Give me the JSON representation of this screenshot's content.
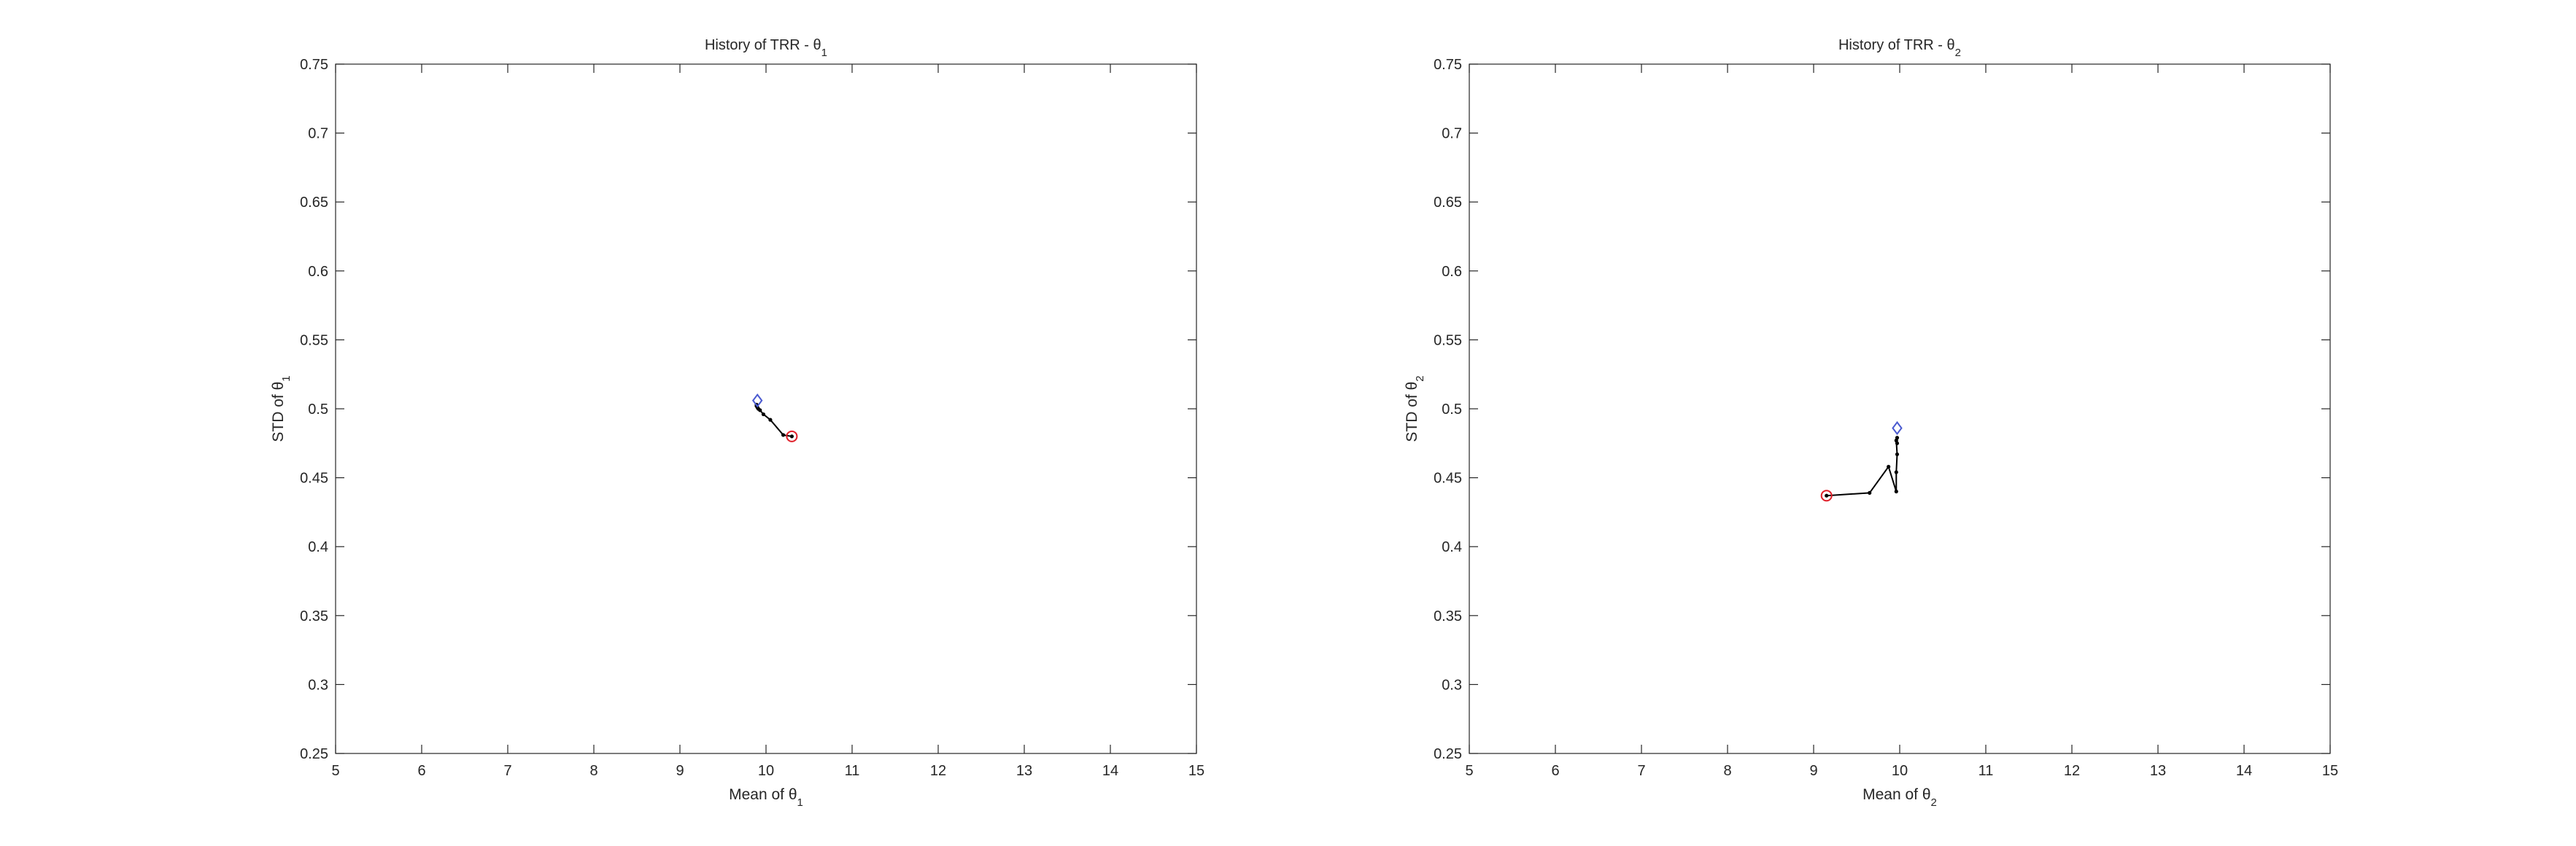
{
  "chart_data": [
    {
      "type": "line",
      "title": "History of TRR - θ",
      "title_subscript": "1",
      "xlabel": "Mean of θ",
      "xlabel_subscript": "1",
      "ylabel": "STD of θ",
      "ylabel_subscript": "1",
      "xlim": [
        5,
        15
      ],
      "ylim": [
        0.25,
        0.75
      ],
      "xticks": [
        5,
        6,
        7,
        8,
        9,
        10,
        11,
        12,
        13,
        14,
        15
      ],
      "yticks": [
        0.25,
        0.3,
        0.35,
        0.4,
        0.45,
        0.5,
        0.55,
        0.6,
        0.65,
        0.7,
        0.75
      ],
      "xtick_labels": [
        "5",
        "6",
        "7",
        "8",
        "9",
        "10",
        "11",
        "12",
        "13",
        "14",
        "15"
      ],
      "ytick_labels": [
        "0.25",
        "0.3",
        "0.35",
        "0.4",
        "0.45",
        "0.5",
        "0.55",
        "0.6",
        "0.65",
        "0.7",
        "0.75"
      ],
      "grid": false,
      "series": [
        {
          "name": "history",
          "color": "#000000",
          "x": [
            10.3,
            10.2,
            10.05,
            9.97,
            9.93,
            9.91,
            9.9,
            9.89,
            9.89
          ],
          "y": [
            0.48,
            0.481,
            0.492,
            0.496,
            0.499,
            0.5,
            0.501,
            0.502,
            0.503
          ]
        }
      ],
      "start_marker": {
        "shape": "circle",
        "color": "#e0202a",
        "x": 10.3,
        "y": 0.48
      },
      "end_marker": {
        "shape": "diamond",
        "color": "#4a5ad0",
        "x": 9.9,
        "y": 0.506
      }
    },
    {
      "type": "line",
      "title": "History of TRR - θ",
      "title_subscript": "2",
      "xlabel": "Mean of θ",
      "xlabel_subscript": "2",
      "ylabel": "STD of θ",
      "ylabel_subscript": "2",
      "xlim": [
        5,
        15
      ],
      "ylim": [
        0.25,
        0.75
      ],
      "xticks": [
        5,
        6,
        7,
        8,
        9,
        10,
        11,
        12,
        13,
        14,
        15
      ],
      "yticks": [
        0.25,
        0.3,
        0.35,
        0.4,
        0.45,
        0.5,
        0.55,
        0.6,
        0.65,
        0.7,
        0.75
      ],
      "xtick_labels": [
        "5",
        "6",
        "7",
        "8",
        "9",
        "10",
        "11",
        "12",
        "13",
        "14",
        "15"
      ],
      "ytick_labels": [
        "0.25",
        "0.3",
        "0.35",
        "0.4",
        "0.45",
        "0.5",
        "0.55",
        "0.6",
        "0.65",
        "0.7",
        "0.75"
      ],
      "grid": false,
      "series": [
        {
          "name": "history",
          "color": "#000000",
          "x": [
            9.15,
            9.65,
            9.87,
            9.96,
            9.96,
            9.97,
            9.96,
            9.97,
            9.97
          ],
          "y": [
            0.437,
            0.439,
            0.458,
            0.44,
            0.454,
            0.467,
            0.477,
            0.475,
            0.479
          ]
        }
      ],
      "start_marker": {
        "shape": "circle",
        "color": "#e0202a",
        "x": 9.15,
        "y": 0.437
      },
      "end_marker": {
        "shape": "diamond",
        "color": "#4a5ad0",
        "x": 9.97,
        "y": 0.486
      }
    }
  ]
}
